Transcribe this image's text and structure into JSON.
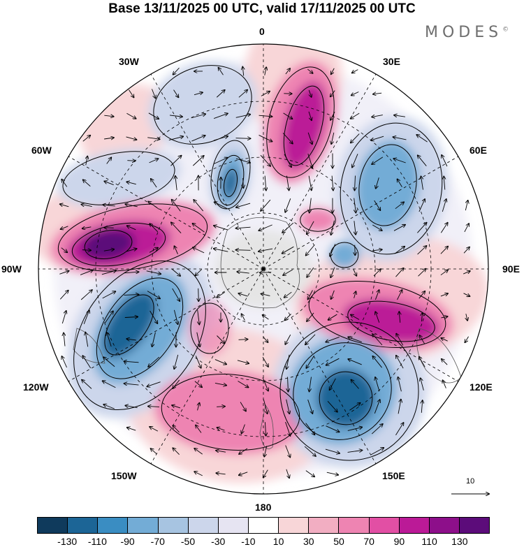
{
  "title": "Base 13/11/2025 00 UTC, valid 17/11/2025 00 UTC",
  "logo": {
    "text": "MODES",
    "mark": "©"
  },
  "longitude_labels": {
    "lon_0": "0",
    "lon_30e": "30E",
    "lon_60e": "60E",
    "lon_90e": "90E",
    "lon_120e": "120E",
    "lon_150e": "150E",
    "lon_180": "180",
    "lon_150w": "150W",
    "lon_120w": "120W",
    "lon_90w": "90W",
    "lon_60w": "60W",
    "lon_30w": "30W"
  },
  "reference_vector": {
    "label": "10"
  },
  "colorbar": {
    "colors": [
      "#0f3a5c",
      "#1c6596",
      "#3a8dc2",
      "#73acd6",
      "#a7c4e1",
      "#ccd6eb",
      "#e6e4f2",
      "#ffffff",
      "#f8d6d8",
      "#f2aec2",
      "#ee84b2",
      "#e24fa4",
      "#bb1a97",
      "#8d0f8a",
      "#5c0c7a"
    ],
    "tick_labels": [
      "-130",
      "-110",
      "-90",
      "-70",
      "-50",
      "-30",
      "-10",
      "10",
      "30",
      "50",
      "70",
      "90",
      "110",
      "130"
    ]
  },
  "map": {
    "projection": "south polar stereographic",
    "palette": {
      "deep_blue": "#1c6596",
      "mid_blue": "#73acd6",
      "light_blue": "#ccd6eb",
      "pale_blue": "#e6e4f2",
      "pale_pink": "#f8d6d8",
      "pink": "#ee84b2",
      "magenta": "#bb1a97",
      "purple": "#5c0c7a",
      "land": "#e5e5e5"
    }
  }
}
